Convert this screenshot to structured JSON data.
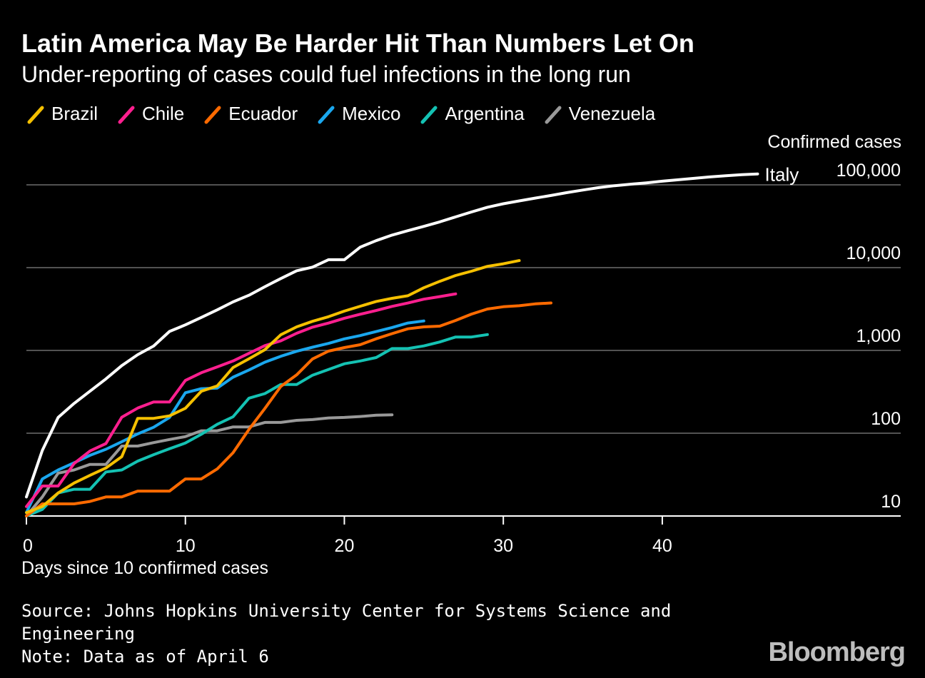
{
  "title": "Latin America May Be Harder Hit Than Numbers Let On",
  "subtitle": "Under-reporting of cases could fuel infections in the long run",
  "y_axis_title": "Confirmed cases",
  "x_axis_title": "Days since 10 confirmed cases",
  "source": "Source: Johns Hopkins University Center for Systems Science and",
  "source_cont": "Engineering",
  "note": "Note: Data as of April 6",
  "brand": "Bloomberg",
  "chart_data": {
    "type": "line",
    "y_scale": "log",
    "ylim": [
      10,
      100000
    ],
    "xlim": [
      0,
      55
    ],
    "x_ticks": [
      {
        "v": 0,
        "label": "0"
      },
      {
        "v": 10,
        "label": "10"
      },
      {
        "v": 20,
        "label": "20"
      },
      {
        "v": 30,
        "label": "30"
      },
      {
        "v": 40,
        "label": "40"
      }
    ],
    "y_ticks": [
      {
        "v": 10,
        "label": "10"
      },
      {
        "v": 100,
        "label": "100"
      },
      {
        "v": 1000,
        "label": "1,000"
      },
      {
        "v": 10000,
        "label": "10,000"
      },
      {
        "v": 100000,
        "label": "100,000"
      }
    ],
    "grid": true,
    "legend_position": "top-left",
    "series": [
      {
        "name": "Italy",
        "color": "#ffffff",
        "direct_label": true,
        "values": [
          17,
          62,
          155,
          229,
          322,
          453,
          655,
          888,
          1128,
          1694,
          2036,
          2502,
          3089,
          3858,
          4636,
          5883,
          7375,
          9172,
          10149,
          12462,
          12462,
          17660,
          21157,
          24747,
          27980,
          31506,
          35713,
          41035,
          47021,
          53578,
          59138,
          63927,
          69176,
          74386,
          80589,
          86498,
          92472,
          97689,
          101739,
          105792,
          110574,
          115242,
          119827,
          124632,
          128948,
          132547,
          135586
        ]
      },
      {
        "name": "Brazil",
        "color": "#f5c000",
        "values": [
          11,
          13,
          19,
          25,
          31,
          38,
          52,
          151,
          151,
          162,
          200,
          321,
          372,
          621,
          793,
          1021,
          1546,
          1924,
          2247,
          2554,
          2985,
          3417,
          3904,
          4256,
          4579,
          5717,
          6836,
          8044,
          9056,
          10360,
          11130,
          12161
        ]
      },
      {
        "name": "Chile",
        "color": "#ff1f8f",
        "values": [
          13,
          23,
          23,
          43,
          61,
          75,
          156,
          201,
          238,
          238,
          434,
          537,
          632,
          746,
          922,
          1142,
          1306,
          1610,
          1909,
          2139,
          2449,
          2738,
          3031,
          3404,
          3737,
          4161,
          4471,
          4815
        ]
      },
      {
        "name": "Ecuador",
        "color": "#ff6a00",
        "values": [
          10,
          14,
          14,
          14,
          15,
          17,
          17,
          20,
          20,
          20,
          28,
          28,
          37,
          58,
          111,
          199,
          367,
          506,
          789,
          981,
          1082,
          1173,
          1382,
          1595,
          1823,
          1924,
          1962,
          2302,
          2748,
          3163,
          3368,
          3465,
          3646,
          3747
        ]
      },
      {
        "name": "Mexico",
        "color": "#1aa7ee",
        "values": [
          11,
          28,
          36,
          44,
          54,
          64,
          79,
          98,
          118,
          155,
          308,
          345,
          350,
          475,
          581,
          720,
          849,
          976,
          1094,
          1215,
          1378,
          1510,
          1688,
          1890,
          2143,
          2270
        ]
      },
      {
        "name": "Argentina",
        "color": "#14c2b3",
        "values": [
          10,
          12,
          19,
          21,
          21,
          34,
          36,
          46,
          55,
          65,
          76,
          97,
          128,
          158,
          265,
          301,
          387,
          387,
          502,
          589,
          690,
          745,
          820,
          1054,
          1054,
          1133,
          1265,
          1451,
          1451,
          1554
        ]
      },
      {
        "name": "Venezuela",
        "color": "#999999",
        "values": [
          10,
          17,
          33,
          36,
          42,
          42,
          70,
          70,
          77,
          84,
          91,
          107,
          107,
          119,
          119,
          135,
          135,
          143,
          146,
          153,
          155,
          159,
          165,
          167
        ]
      }
    ]
  }
}
